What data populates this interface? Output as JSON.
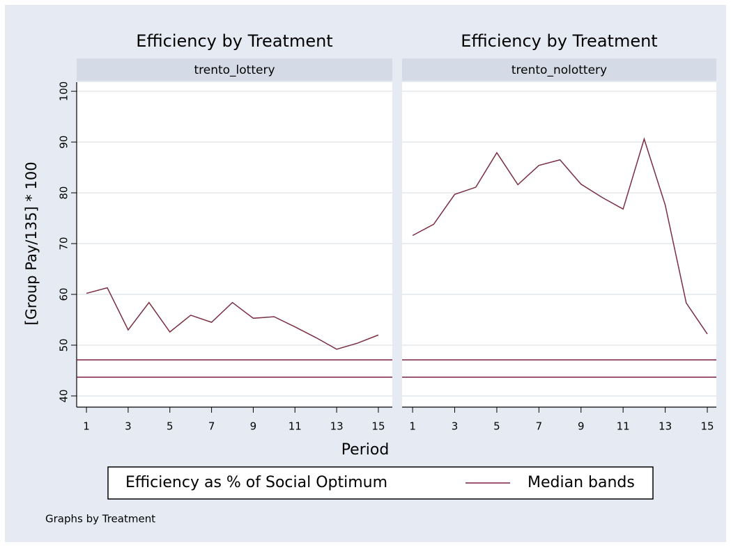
{
  "chart_data": [
    {
      "type": "line",
      "title": "Efficiency by Treatment",
      "subtitle": "trento_lottery",
      "x": [
        1,
        2,
        3,
        4,
        5,
        6,
        7,
        8,
        9,
        10,
        11,
        12,
        13,
        14,
        15
      ],
      "series": [
        {
          "color": "#7a2e42",
          "values": [
            60.2,
            61.3,
            53.0,
            58.4,
            52.6,
            55.9,
            54.5,
            58.4,
            55.3,
            55.6,
            53.6,
            51.5,
            49.2,
            50.4,
            52.0
          ]
        }
      ],
      "hlines": [
        47.1,
        43.7
      ],
      "hline_color": "#7a1e45",
      "xlim": [
        0.53,
        15.67
      ],
      "xticks": [
        1,
        3,
        5,
        7,
        9,
        11,
        13,
        15
      ],
      "ylim": [
        37.8,
        101.8
      ],
      "yticks": [
        40,
        50,
        60,
        70,
        80,
        90,
        100
      ],
      "grid": true
    },
    {
      "type": "line",
      "title": "Efficiency by Treatment",
      "subtitle": "trento_nolottery",
      "x": [
        1,
        2,
        3,
        4,
        5,
        6,
        7,
        8,
        9,
        10,
        11,
        12,
        13,
        14,
        15
      ],
      "series": [
        {
          "color": "#7a2e42",
          "values": [
            71.6,
            73.8,
            79.7,
            81.1,
            87.9,
            81.6,
            85.4,
            86.5,
            81.7,
            79.1,
            76.8,
            90.6,
            77.6,
            58.3,
            52.2
          ]
        }
      ],
      "hlines": [
        47.1,
        43.7
      ],
      "hline_color": "#7a1e45",
      "xlim": [
        0.5,
        15.43
      ],
      "xticks": [
        1,
        3,
        5,
        7,
        9,
        11,
        13,
        15
      ],
      "ylim": [
        37.8,
        101.8
      ],
      "yticks": [
        40,
        50,
        60,
        70,
        80,
        90,
        100
      ],
      "grid": true
    }
  ],
  "ylabel": "[Group Pay/135] * 100",
  "xlabel": "Period",
  "legend": {
    "entries": [
      {
        "name": "Efficiency as % of Social Optimum"
      },
      {
        "name": "Median bands",
        "color": "#7a1e45"
      }
    ]
  },
  "note": "Graphs by Treatment"
}
